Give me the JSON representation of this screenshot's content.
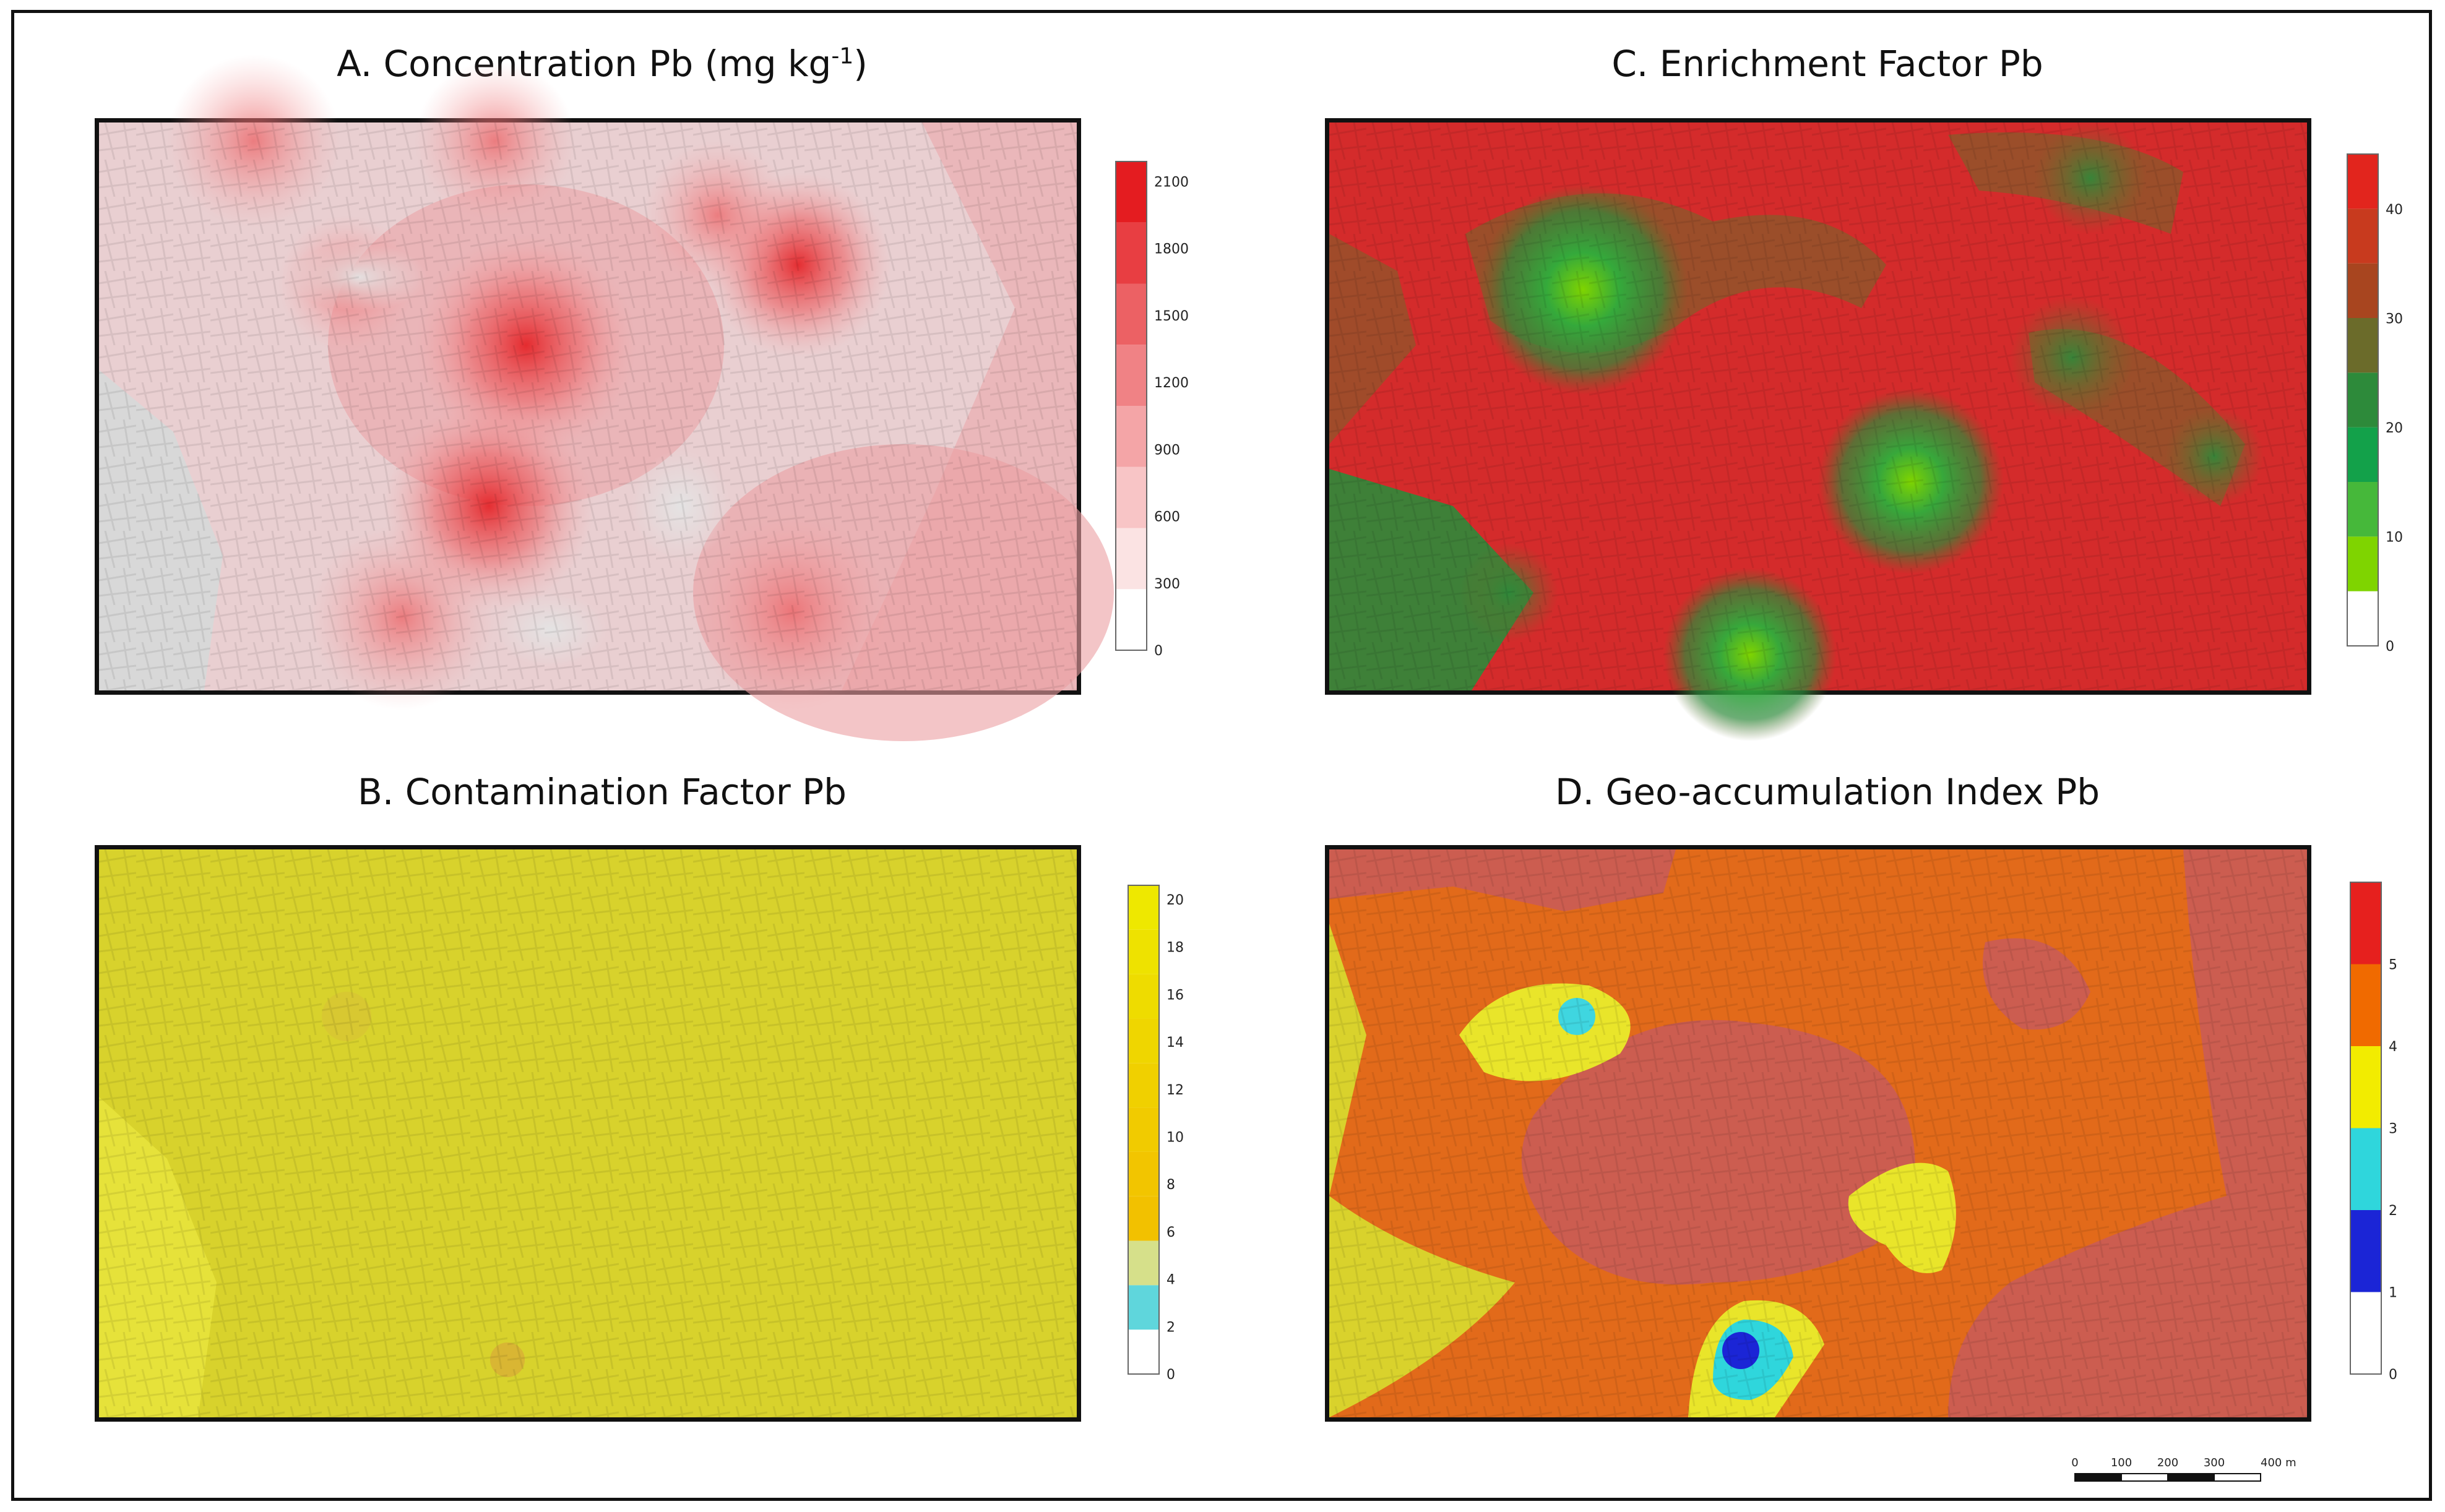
{
  "figure": {
    "panels": [
      {
        "id": "A",
        "title": "A. Concentration Pb (mg kg",
        "title_sup": "-1",
        "title_end": ")",
        "base_color": "#e8d4d4",
        "legend": {
          "labels": [
            "0",
            "300",
            "600",
            "900",
            "1200",
            "1500",
            "1800",
            "2100"
          ],
          "colors": [
            "#ffffff",
            "#fbe3e3",
            "#f8c5c6",
            "#f4a5a7",
            "#f08285",
            "#ec6164",
            "#e83e42",
            "#e41c20"
          ]
        }
      },
      {
        "id": "B",
        "title": "B. Contamination Factor Pb",
        "base_color": "#d9d52a",
        "legend": {
          "labels": [
            "0",
            "2",
            "4",
            "6",
            "8",
            "10",
            "12",
            "14",
            "16",
            "18",
            "20"
          ],
          "colors": [
            "#ffffff",
            "#5fd6dc",
            "#d6e08a",
            "#f2c100",
            "#f2c500",
            "#f1cb00",
            "#f0d000",
            "#efd600",
            "#eedc00",
            "#eee200",
            "#eee800"
          ]
        }
      },
      {
        "id": "C",
        "title": "C. Enrichment Factor Pb",
        "base_color": "#d42b2b",
        "legend": {
          "labels": [
            "0",
            "10",
            "20",
            "30",
            "40"
          ],
          "colors": [
            "#ffffff",
            "#7fd400",
            "#46b83a",
            "#13a14a",
            "#2d8a3a",
            "#6b6b2a",
            "#a8451f",
            "#c83a1e",
            "#e2251d"
          ]
        }
      },
      {
        "id": "D",
        "title": "D. Geo-accumulation Index Pb",
        "base_color": "#d95d4a",
        "legend": {
          "labels": [
            "0",
            "1",
            "2",
            "3",
            "4",
            "5"
          ],
          "colors": [
            "#ffffff",
            "#1b25d6",
            "#2fd6dc",
            "#f2ec00",
            "#f06a00",
            "#e6201e"
          ]
        }
      }
    ],
    "scalebar": {
      "labels": [
        "0",
        "100",
        "200",
        "300",
        "400 m"
      ]
    }
  }
}
